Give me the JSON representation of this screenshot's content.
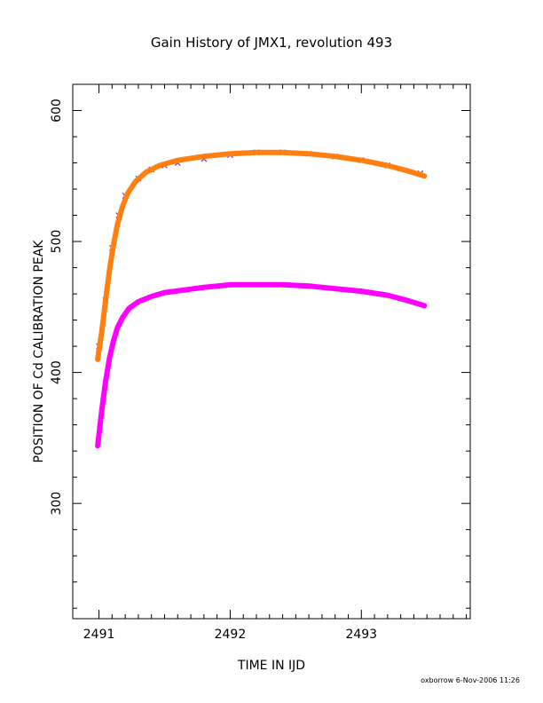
{
  "chart_data": {
    "type": "scatter",
    "title": "Gain History of JMX1, revolution 493",
    "xlabel": "TIME IN IJD",
    "ylabel": "POSITION OF Cd CALIBRATION PEAK",
    "xlim": [
      2490.8,
      2493.83
    ],
    "ylim": [
      212,
      620
    ],
    "x_ticks": [
      2491,
      2492,
      2493
    ],
    "x_tick_labels": [
      "2491",
      "2492",
      "2493"
    ],
    "y_ticks": [
      300,
      400,
      500,
      600
    ],
    "y_tick_labels": [
      "300",
      "400",
      "500",
      "600"
    ],
    "grid": false,
    "legend": "none",
    "series": [
      {
        "marker": "x",
        "color": "#8a2be2",
        "values": [
          {
            "x": 2491.0,
            "y": 420
          },
          {
            "x": 2491.05,
            "y": 455
          },
          {
            "x": 2491.1,
            "y": 495
          },
          {
            "x": 2491.15,
            "y": 520
          },
          {
            "x": 2491.2,
            "y": 535
          },
          {
            "x": 2491.3,
            "y": 548
          },
          {
            "x": 2491.4,
            "y": 555
          },
          {
            "x": 2491.5,
            "y": 558
          },
          {
            "x": 2491.6,
            "y": 560
          },
          {
            "x": 2491.8,
            "y": 563
          },
          {
            "x": 2492.0,
            "y": 566
          },
          {
            "x": 2492.2,
            "y": 568
          },
          {
            "x": 2492.4,
            "y": 568
          },
          {
            "x": 2492.6,
            "y": 567
          },
          {
            "x": 2492.8,
            "y": 565
          },
          {
            "x": 2493.0,
            "y": 562
          },
          {
            "x": 2493.2,
            "y": 558
          },
          {
            "x": 2493.45,
            "y": 552
          }
        ]
      },
      {
        "marker": "+",
        "color": "#ffff00",
        "values": [
          {
            "x": 2491.0,
            "y": 350
          },
          {
            "x": 2491.05,
            "y": 390
          },
          {
            "x": 2491.1,
            "y": 415
          },
          {
            "x": 2491.15,
            "y": 432
          },
          {
            "x": 2491.2,
            "y": 443
          },
          {
            "x": 2491.3,
            "y": 452
          },
          {
            "x": 2491.4,
            "y": 457
          },
          {
            "x": 2491.5,
            "y": 460
          },
          {
            "x": 2491.6,
            "y": 462
          },
          {
            "x": 2491.8,
            "y": 464
          },
          {
            "x": 2492.0,
            "y": 466
          },
          {
            "x": 2492.2,
            "y": 467
          },
          {
            "x": 2492.4,
            "y": 466
          },
          {
            "x": 2492.6,
            "y": 465
          },
          {
            "x": 2492.8,
            "y": 463
          },
          {
            "x": 2493.0,
            "y": 461
          },
          {
            "x": 2493.2,
            "y": 458
          },
          {
            "x": 2493.45,
            "y": 452
          }
        ]
      },
      {
        "type": "line",
        "color": "#ff7f11",
        "values": [
          {
            "x": 2490.99,
            "y": 410
          },
          {
            "x": 2491.02,
            "y": 430
          },
          {
            "x": 2491.05,
            "y": 455
          },
          {
            "x": 2491.08,
            "y": 478
          },
          {
            "x": 2491.11,
            "y": 497
          },
          {
            "x": 2491.14,
            "y": 513
          },
          {
            "x": 2491.18,
            "y": 527
          },
          {
            "x": 2491.22,
            "y": 537
          },
          {
            "x": 2491.28,
            "y": 546
          },
          {
            "x": 2491.36,
            "y": 553
          },
          {
            "x": 2491.46,
            "y": 558
          },
          {
            "x": 2491.6,
            "y": 562
          },
          {
            "x": 2491.8,
            "y": 565
          },
          {
            "x": 2492.0,
            "y": 567
          },
          {
            "x": 2492.2,
            "y": 568
          },
          {
            "x": 2492.4,
            "y": 568
          },
          {
            "x": 2492.6,
            "y": 567
          },
          {
            "x": 2492.8,
            "y": 565
          },
          {
            "x": 2493.0,
            "y": 562
          },
          {
            "x": 2493.2,
            "y": 558
          },
          {
            "x": 2493.35,
            "y": 554
          },
          {
            "x": 2493.48,
            "y": 550
          }
        ]
      },
      {
        "type": "line",
        "color": "#ff00ff",
        "values": [
          {
            "x": 2490.99,
            "y": 344
          },
          {
            "x": 2491.02,
            "y": 370
          },
          {
            "x": 2491.05,
            "y": 393
          },
          {
            "x": 2491.08,
            "y": 411
          },
          {
            "x": 2491.11,
            "y": 424
          },
          {
            "x": 2491.14,
            "y": 434
          },
          {
            "x": 2491.18,
            "y": 442
          },
          {
            "x": 2491.23,
            "y": 449
          },
          {
            "x": 2491.3,
            "y": 454
          },
          {
            "x": 2491.4,
            "y": 458
          },
          {
            "x": 2491.5,
            "y": 461
          },
          {
            "x": 2491.65,
            "y": 463
          },
          {
            "x": 2491.8,
            "y": 465
          },
          {
            "x": 2492.0,
            "y": 467
          },
          {
            "x": 2492.2,
            "y": 467
          },
          {
            "x": 2492.4,
            "y": 467
          },
          {
            "x": 2492.6,
            "y": 466
          },
          {
            "x": 2492.8,
            "y": 464
          },
          {
            "x": 2493.0,
            "y": 462
          },
          {
            "x": 2493.2,
            "y": 459
          },
          {
            "x": 2493.35,
            "y": 455
          },
          {
            "x": 2493.48,
            "y": 451
          }
        ]
      }
    ],
    "footer": "oxborrow   6-Nov-2006 11:26"
  }
}
